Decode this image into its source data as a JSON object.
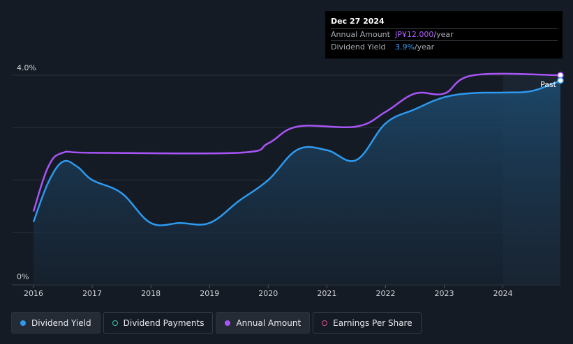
{
  "chart_data": {
    "type": "line",
    "x_ticks": [
      "2016",
      "2017",
      "2018",
      "2019",
      "2020",
      "2021",
      "2022",
      "2023",
      "2024"
    ],
    "y_ticks": [
      "0%",
      "4.0%"
    ],
    "past_label": "Past",
    "series": [
      {
        "name": "Dividend Yield",
        "unit": "%",
        "color": "#2d9af0",
        "x": [
          2016.0,
          2016.25,
          2016.5,
          2016.75,
          2017.0,
          2017.5,
          2018.0,
          2018.5,
          2019.0,
          2019.5,
          2020.0,
          2020.5,
          2021.0,
          2021.5,
          2022.0,
          2022.5,
          2023.0,
          2023.5,
          2024.0,
          2024.5,
          2024.98
        ],
        "values": [
          1.2,
          1.95,
          2.35,
          2.25,
          2.0,
          1.75,
          1.18,
          1.18,
          1.18,
          1.6,
          2.0,
          2.58,
          2.57,
          2.38,
          3.08,
          3.35,
          3.58,
          3.66,
          3.67,
          3.7,
          3.9
        ]
      },
      {
        "name": "Annual Amount",
        "unit": "JP¥/year",
        "color": "#a855f7",
        "x": [
          2016.0,
          2016.25,
          2016.5,
          2017.0,
          2019.5,
          2020.0,
          2020.5,
          2021.5,
          2022.0,
          2022.5,
          2023.0,
          2023.5,
          2024.98
        ],
        "values": [
          1.4,
          2.25,
          2.52,
          2.52,
          2.52,
          2.7,
          3.02,
          3.02,
          3.3,
          3.65,
          3.65,
          4.0,
          4.0
        ]
      }
    ],
    "xlim": [
      2016.0,
      2024.98
    ],
    "ylim": [
      0,
      4.0
    ],
    "grid": true,
    "forecast_shade_from": 2024.0
  },
  "tooltip": {
    "date": "Dec 27 2024",
    "rows": [
      {
        "label": "Annual Amount",
        "value": "JP¥12.000",
        "unit": "/year"
      },
      {
        "label": "Dividend Yield",
        "value": "3.9%",
        "unit": "/year"
      }
    ]
  },
  "legend": [
    {
      "label": "Dividend Yield",
      "color": "#2d9af0",
      "filled": true
    },
    {
      "label": "Dividend Payments",
      "color": "#37c8b4",
      "filled": false
    },
    {
      "label": "Annual Amount",
      "color": "#a855f7",
      "filled": true
    },
    {
      "label": "Earnings Per Share",
      "color": "#d64f8a",
      "filled": false
    }
  ]
}
